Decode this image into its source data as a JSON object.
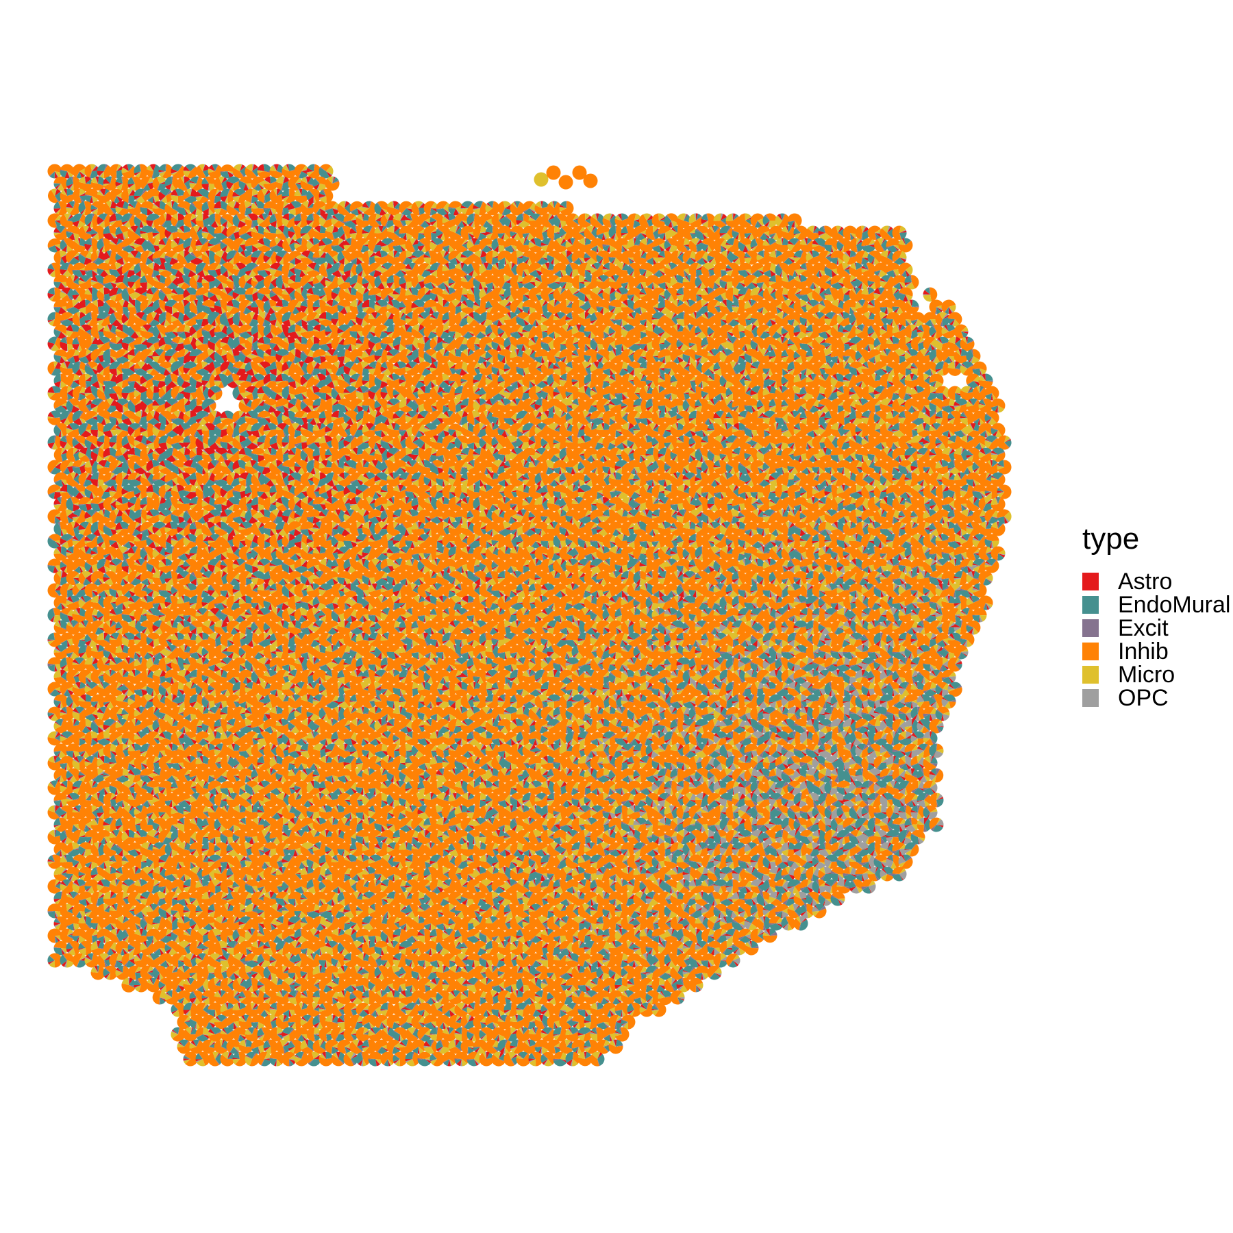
{
  "chart_data": {
    "type": "scatter",
    "subtype": "spatial-scatterpie",
    "title": "",
    "xlabel": "",
    "ylabel": "",
    "axes_visible": false,
    "grid": false,
    "legend": {
      "title": "type",
      "placement": "right",
      "entries": [
        {
          "name": "Astro",
          "color": "#E41A1C"
        },
        {
          "name": "EndoMural",
          "color": "#45908F"
        },
        {
          "name": "Excit",
          "color": "#85738F"
        },
        {
          "name": "Inhib",
          "color": "#FF8205"
        },
        {
          "name": "Micro",
          "color": "#DFC02D"
        },
        {
          "name": "OPC",
          "color": "#9F9F9F"
        }
      ]
    },
    "regions": [
      {
        "description": "upper-left block rich in Astro and EndoMural",
        "weights": {
          "Astro": 0.22,
          "EndoMural": 0.3,
          "Excit": 0.03,
          "Inhib": 0.33,
          "Micro": 0.1,
          "OPC": 0.02
        }
      },
      {
        "description": "central area dominated by Inhib",
        "weights": {
          "Astro": 0.05,
          "EndoMural": 0.17,
          "Excit": 0.02,
          "Inhib": 0.6,
          "Micro": 0.14,
          "OPC": 0.02
        }
      },
      {
        "description": "lower-right area rich in EndoMural and OPC",
        "weights": {
          "Astro": 0.05,
          "EndoMural": 0.3,
          "Excit": 0.06,
          "Inhib": 0.27,
          "Micro": 0.08,
          "OPC": 0.24
        }
      }
    ]
  }
}
